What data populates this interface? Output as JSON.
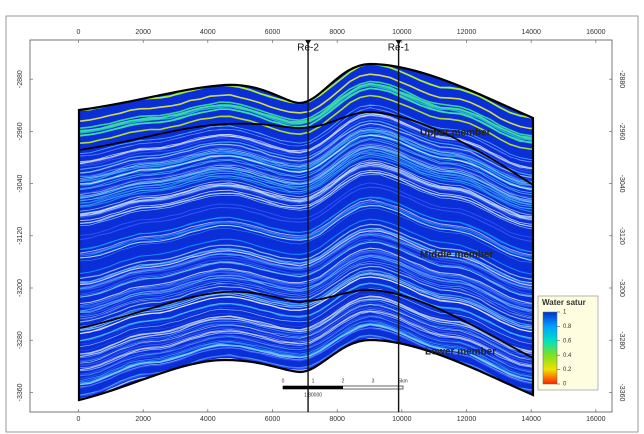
{
  "chart_data": {
    "type": "section",
    "xlim": [
      -1500,
      16500
    ],
    "xticks": [
      0,
      2000,
      4000,
      6000,
      8000,
      10000,
      12000,
      14000,
      16000
    ],
    "ylim": [
      -3390,
      -2820
    ],
    "yticks": [
      -2880,
      -2960,
      -3040,
      -3120,
      -3200,
      -3280,
      -3360
    ],
    "wells": [
      {
        "name": "Re-2",
        "x": 7100
      },
      {
        "name": "Re-1",
        "x": 9900
      }
    ],
    "zones": [
      "Upper member",
      "Middle member",
      "Lower member"
    ],
    "colorbar": {
      "title": "Water satur",
      "ticks": [
        1,
        0.8,
        0.6,
        0.4,
        0.2,
        0
      ],
      "colors": [
        "#0033cc",
        "#00a0ff",
        "#00e0c0",
        "#80e020",
        "#f0e000",
        "#ff2000"
      ]
    },
    "scale_bar": {
      "labels": [
        "0",
        "1",
        "2",
        "3",
        "5km"
      ],
      "ratio": "1:80000"
    }
  }
}
